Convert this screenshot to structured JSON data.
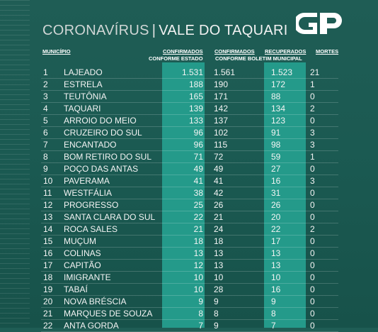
{
  "title": {
    "part1": "CORONAVÍRUS",
    "separator": "|",
    "part2": "VALE DO TAQUARI"
  },
  "logo": {
    "text": "GP"
  },
  "headers": {
    "municipio": "MUNICÍPIO",
    "confirmados_estado_1": "CONFIRMADOS",
    "confirmados_estado_2": "CONFORME ESTADO",
    "confirmados_municipal_1": "CONFIRMADOS",
    "confirmados_municipal_2": "CONFORME BOLETIM MUNICIPAL",
    "recuperados": "RECUPERADOS",
    "mortes": "MORTES"
  },
  "rows": [
    {
      "rank": "1",
      "name": "LAJEADO",
      "conf_estado": "1.531",
      "conf_municipal": "1.561",
      "recuperados": "1.523",
      "mortes": "21"
    },
    {
      "rank": "2",
      "name": "ESTRELA",
      "conf_estado": "188",
      "conf_municipal": "190",
      "recuperados": "172",
      "mortes": "1"
    },
    {
      "rank": "3",
      "name": "TEUTÔNIA",
      "conf_estado": "165",
      "conf_municipal": "171",
      "recuperados": "88",
      "mortes": "0"
    },
    {
      "rank": "4",
      "name": "TAQUARI",
      "conf_estado": "139",
      "conf_municipal": "142",
      "recuperados": "134",
      "mortes": "2"
    },
    {
      "rank": "5",
      "name": "ARROIO DO MEIO",
      "conf_estado": "133",
      "conf_municipal": "137",
      "recuperados": "123",
      "mortes": "0"
    },
    {
      "rank": "6",
      "name": "CRUZEIRO DO SUL",
      "conf_estado": "96",
      "conf_municipal": "102",
      "recuperados": "91",
      "mortes": "3"
    },
    {
      "rank": "7",
      "name": "ENCANTADO",
      "conf_estado": "96",
      "conf_municipal": "115",
      "recuperados": "98",
      "mortes": "3"
    },
    {
      "rank": "8",
      "name": "BOM RETIRO DO SUL",
      "conf_estado": "71",
      "conf_municipal": "72",
      "recuperados": "59",
      "mortes": "1"
    },
    {
      "rank": "9",
      "name": "POÇO DAS ANTAS",
      "conf_estado": "49",
      "conf_municipal": "49",
      "recuperados": "27",
      "mortes": "0"
    },
    {
      "rank": "10",
      "name": "PAVERAMA",
      "conf_estado": "41",
      "conf_municipal": "41",
      "recuperados": "16",
      "mortes": "3"
    },
    {
      "rank": "11",
      "name": "WESTFÁLIA",
      "conf_estado": "38",
      "conf_municipal": "42",
      "recuperados": "31",
      "mortes": "0"
    },
    {
      "rank": "12",
      "name": "PROGRESSO",
      "conf_estado": "25",
      "conf_municipal": "26",
      "recuperados": "26",
      "mortes": "0"
    },
    {
      "rank": "13",
      "name": "SANTA CLARA DO SUL",
      "conf_estado": "22",
      "conf_municipal": "21",
      "recuperados": "20",
      "mortes": "0"
    },
    {
      "rank": "14",
      "name": "ROCA SALES",
      "conf_estado": "21",
      "conf_municipal": "24",
      "recuperados": "22",
      "mortes": "2"
    },
    {
      "rank": "15",
      "name": "MUÇUM",
      "conf_estado": "18",
      "conf_municipal": "18",
      "recuperados": "17",
      "mortes": "0"
    },
    {
      "rank": "16",
      "name": "COLINAS",
      "conf_estado": "13",
      "conf_municipal": "13",
      "recuperados": "13",
      "mortes": "0"
    },
    {
      "rank": "17",
      "name": "CAPITÃO",
      "conf_estado": "12",
      "conf_municipal": "13",
      "recuperados": "13",
      "mortes": "0"
    },
    {
      "rank": "18",
      "name": "IMIGRANTE",
      "conf_estado": "10",
      "conf_municipal": "10",
      "recuperados": "10",
      "mortes": "0"
    },
    {
      "rank": "19",
      "name": "TABAÍ",
      "conf_estado": "10",
      "conf_municipal": "28",
      "recuperados": "16",
      "mortes": "0"
    },
    {
      "rank": "20",
      "name": "NOVA BRÉSCIA",
      "conf_estado": "9",
      "conf_municipal": "9",
      "recuperados": "9",
      "mortes": "0"
    },
    {
      "rank": "21",
      "name": "MARQUES DE SOUZA",
      "conf_estado": "8",
      "conf_municipal": "8",
      "recuperados": "8",
      "mortes": "0"
    },
    {
      "rank": "22",
      "name": "ANTA GORDA",
      "conf_estado": "7",
      "conf_municipal": "9",
      "recuperados": "7",
      "mortes": "0"
    }
  ],
  "colors": {
    "background": "#1b5a52",
    "accent_column": "#249a8a",
    "text": "#ffffff"
  }
}
